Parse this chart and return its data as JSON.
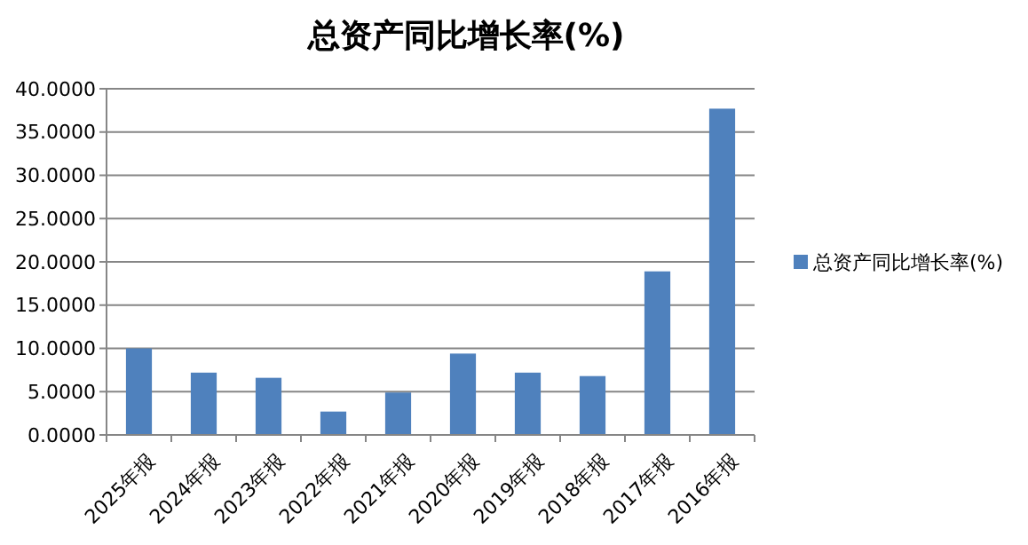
{
  "chart_data": {
    "type": "bar",
    "title": "总资产同比增长率(%)",
    "categories": [
      "2025年报",
      "2024年报",
      "2023年报",
      "2022年报",
      "2021年报",
      "2020年报",
      "2019年报",
      "2018年报",
      "2017年报",
      "2016年报"
    ],
    "series": [
      {
        "name": "总资产同比增长率(%)",
        "color": "#4f81bd",
        "values": [
          10.0,
          7.2,
          6.6,
          2.7,
          4.9,
          9.4,
          7.2,
          6.8,
          18.9,
          37.7
        ]
      }
    ],
    "ylim": [
      0,
      40
    ],
    "yticks": [
      {
        "value": 0,
        "label": "0.0000"
      },
      {
        "value": 5,
        "label": "5.0000"
      },
      {
        "value": 10,
        "label": "10.0000"
      },
      {
        "value": 15,
        "label": "15.0000"
      },
      {
        "value": 20,
        "label": "20.0000"
      },
      {
        "value": 25,
        "label": "25.0000"
      },
      {
        "value": 30,
        "label": "30.0000"
      },
      {
        "value": 35,
        "label": "35.0000"
      },
      {
        "value": 40,
        "label": "40.0000"
      }
    ],
    "grid": "y",
    "legend": "right"
  }
}
